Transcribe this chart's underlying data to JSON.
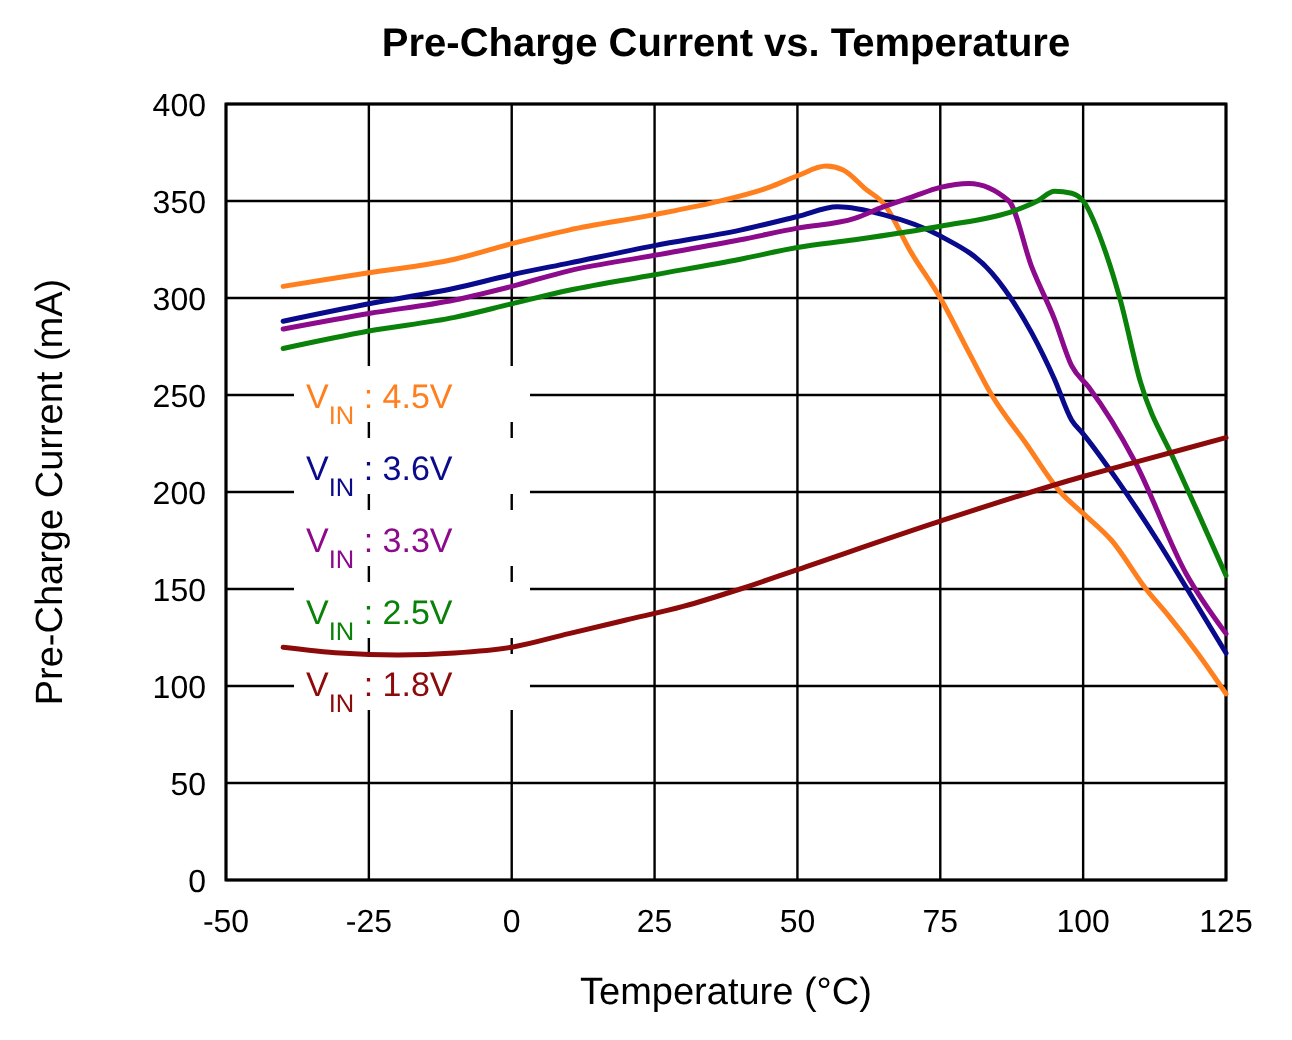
{
  "chart_data": {
    "type": "line",
    "title": "Pre-Charge Current vs. Temperature",
    "xlabel": "Temperature (°C)",
    "ylabel": "Pre-Charge Current (mA)",
    "xlim": [
      -50,
      125
    ],
    "xticks": [
      -50,
      -25,
      0,
      25,
      50,
      75,
      100,
      125
    ],
    "ylim": [
      0,
      400
    ],
    "yticks": [
      0,
      50,
      100,
      150,
      200,
      250,
      300,
      350,
      400
    ],
    "grid": true,
    "legend": "left",
    "marker": "none",
    "line_style": "solid",
    "series": [
      {
        "name": "V$_{IN}$ : 4.5V",
        "color": "#ff7f1e",
        "x": [
          -40,
          -25,
          -10,
          0,
          10,
          25,
          35,
          45,
          50,
          55,
          58,
          62,
          65,
          70,
          75,
          80,
          84,
          90,
          96,
          100,
          105,
          111,
          115,
          120,
          125
        ],
        "values": [
          306,
          313,
          320,
          328,
          335,
          343,
          349,
          357,
          363,
          368,
          366,
          356,
          349,
          323,
          300,
          272,
          250,
          225,
          200,
          189,
          175,
          150,
          136,
          117,
          96
        ]
      },
      {
        "name": "V$_{IN}$ : 3.6V",
        "color": "#0a0a8c",
        "x": [
          -40,
          -25,
          -10,
          0,
          10,
          25,
          40,
          50,
          57,
          65,
          75,
          84,
          91,
          95,
          98,
          100,
          106,
          113,
          118,
          125
        ],
        "values": [
          288,
          297,
          305,
          312,
          318,
          327,
          335,
          342,
          347,
          343,
          332,
          313,
          282,
          258,
          237,
          230,
          206,
          175,
          151,
          117
        ]
      },
      {
        "name": "V$_{IN}$ : 3.3V",
        "color": "#8c0a8c",
        "x": [
          -40,
          -25,
          -10,
          0,
          10,
          25,
          40,
          50,
          60,
          65,
          70,
          75,
          80,
          87,
          91,
          95,
          98,
          101,
          109,
          118,
          125
        ],
        "values": [
          284,
          292,
          299,
          306,
          314,
          322,
          330,
          336,
          341,
          347,
          352,
          357,
          359,
          350,
          316,
          289,
          265,
          254,
          216,
          158,
          127
        ]
      },
      {
        "name": "V$_{IN}$ : 2.5V",
        "color": "#0a820a",
        "x": [
          -40,
          -25,
          -10,
          0,
          10,
          25,
          40,
          50,
          60,
          75,
          88,
          92,
          95,
          98,
          100,
          104,
          106.5,
          110,
          116,
          120,
          125
        ],
        "values": [
          274,
          283,
          290,
          297,
          304,
          312,
          320,
          326,
          330,
          337,
          345,
          350,
          355,
          354,
          350,
          323,
          299,
          257,
          216,
          190,
          157
        ]
      },
      {
        "name": "V$_{IN}$ : 1.8V",
        "color": "#8c0a0a",
        "x": [
          -40,
          -30,
          -20,
          -10,
          0,
          10,
          20,
          30,
          40,
          50,
          75,
          100,
          110,
          125
        ],
        "values": [
          120,
          117,
          116,
          117,
          120,
          127,
          134,
          141,
          150,
          160,
          185,
          208,
          216,
          228
        ]
      }
    ]
  }
}
